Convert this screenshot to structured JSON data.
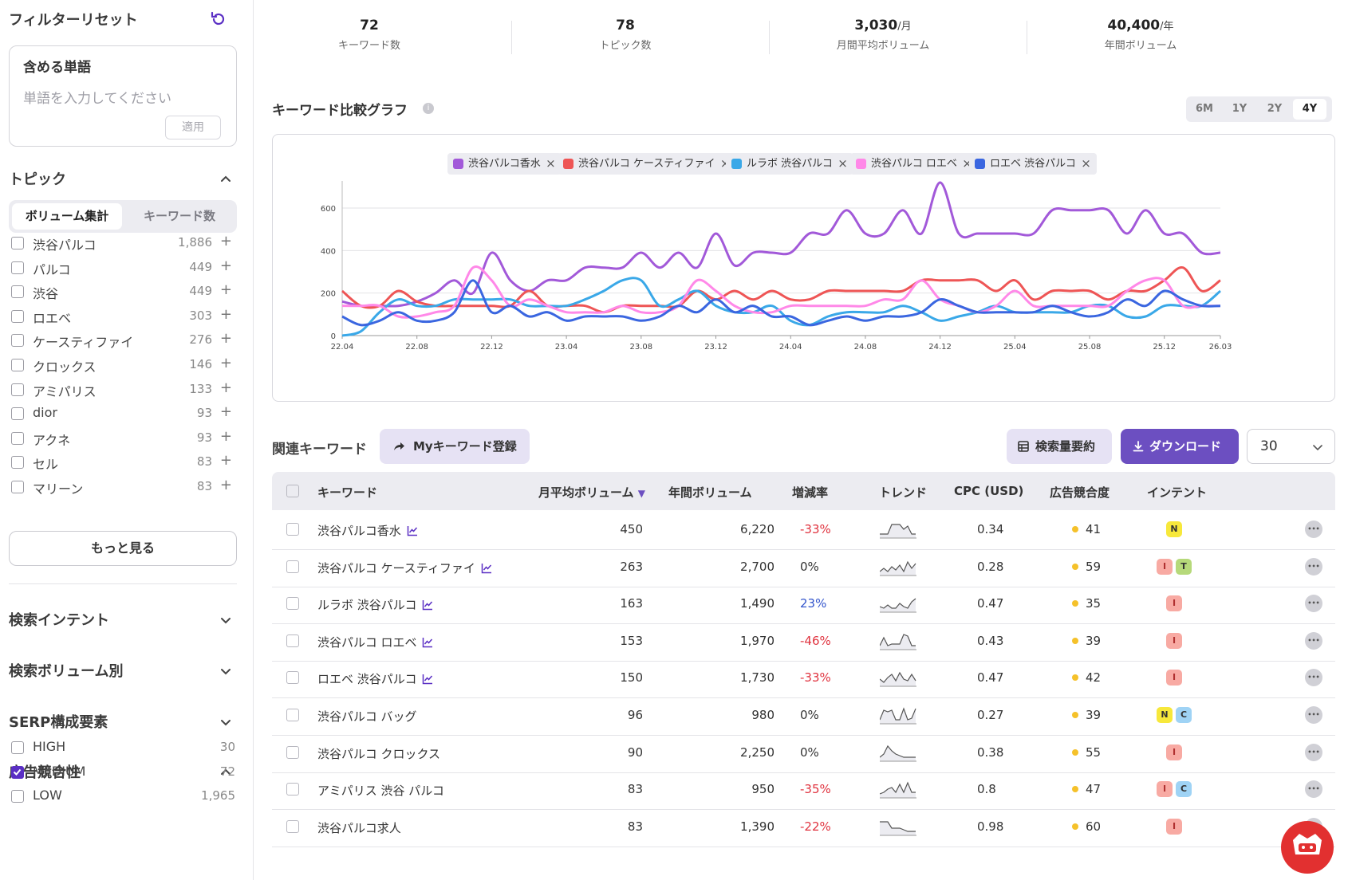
{
  "sidebar": {
    "filter_reset": "フィルターリセット",
    "include_title": "含める単語",
    "include_placeholder": "単語を入力してください",
    "apply": "適用",
    "topic_title": "トピック",
    "seg_volume": "ボリューム集計",
    "seg_keywords": "キーワード数",
    "topics": [
      {
        "label": "渋谷パルコ",
        "count": "1,886"
      },
      {
        "label": "パルコ",
        "count": "449"
      },
      {
        "label": "渋谷",
        "count": "449"
      },
      {
        "label": "ロエベ",
        "count": "303"
      },
      {
        "label": "ケースティファイ",
        "count": "276"
      },
      {
        "label": "クロックス",
        "count": "146"
      },
      {
        "label": "アミパリス",
        "count": "133"
      },
      {
        "label": "dior",
        "count": "93"
      },
      {
        "label": "アクネ",
        "count": "93"
      },
      {
        "label": "セル",
        "count": "83"
      },
      {
        "label": "マリーン",
        "count": "83"
      }
    ],
    "more": "もっと見る",
    "intent_title": "検索インテント",
    "volume_title": "検索ボリューム別",
    "serp_title": "SERP構成要素",
    "ad_title": "広告競合性",
    "ad_levels": [
      {
        "label": "HIGH",
        "count": "30",
        "checked": false
      },
      {
        "label": "MEDIUM",
        "count": "72",
        "checked": true
      },
      {
        "label": "LOW",
        "count": "1,965",
        "checked": false
      }
    ]
  },
  "stats": [
    {
      "value": "72",
      "unit": "",
      "label": "キーワード数"
    },
    {
      "value": "78",
      "unit": "",
      "label": "トピック数"
    },
    {
      "value": "3,030",
      "unit": "/月",
      "label": "月間平均ボリューム"
    },
    {
      "value": "40,400",
      "unit": "/年",
      "label": "年間ボリューム"
    }
  ],
  "chart_title": "キーワード比較グラフ",
  "periods": [
    "6M",
    "1Y",
    "2Y",
    "4Y"
  ],
  "active_period": "4Y",
  "chart_data": {
    "type": "line",
    "x": [
      "22.04",
      "22.05",
      "22.06",
      "22.07",
      "22.08",
      "22.09",
      "22.10",
      "22.11",
      "22.12",
      "23.01",
      "23.02",
      "23.03",
      "23.04",
      "23.05",
      "23.06",
      "23.07",
      "23.08",
      "23.09",
      "23.10",
      "23.11",
      "23.12",
      "24.01",
      "24.02",
      "24.03",
      "24.04",
      "24.05",
      "24.06",
      "24.07",
      "24.08",
      "24.09",
      "24.10",
      "24.11",
      "24.12",
      "25.01",
      "25.02",
      "25.03",
      "25.04",
      "25.05",
      "25.06",
      "25.07",
      "25.08",
      "25.09",
      "25.10",
      "25.11",
      "25.12",
      "26.01",
      "26.02",
      "26.03"
    ],
    "x_ticks": [
      "22.04",
      "22.08",
      "22.12",
      "23.04",
      "23.08",
      "23.12",
      "24.04",
      "24.08",
      "24.12",
      "25.04",
      "25.08",
      "25.12",
      "26.03"
    ],
    "y_ticks": [
      0,
      200,
      400,
      600
    ],
    "ylim": [
      0,
      720
    ],
    "grid": true,
    "legend_position": "top-center",
    "series": [
      {
        "name": "渋谷パルコ香水",
        "color": "#a259d9",
        "values": [
          160,
          140,
          140,
          140,
          160,
          200,
          260,
          200,
          390,
          260,
          210,
          260,
          260,
          320,
          320,
          320,
          390,
          320,
          390,
          320,
          480,
          330,
          390,
          390,
          390,
          480,
          480,
          590,
          480,
          480,
          590,
          480,
          720,
          480,
          480,
          480,
          480,
          480,
          590,
          590,
          590,
          590,
          480,
          590,
          480,
          480,
          390,
          390
        ]
      },
      {
        "name": "渋谷パルコ ケースティファイ",
        "color": "#ee5555",
        "values": [
          210,
          140,
          140,
          210,
          160,
          140,
          140,
          140,
          140,
          140,
          210,
          140,
          140,
          140,
          110,
          140,
          140,
          140,
          140,
          210,
          170,
          210,
          170,
          210,
          170,
          170,
          210,
          210,
          210,
          210,
          210,
          260,
          260,
          260,
          260,
          210,
          260,
          170,
          210,
          210,
          210,
          170,
          210,
          210,
          260,
          320,
          210,
          260
        ]
      },
      {
        "name": "ルラボ 渋谷パルコ",
        "color": "#3aa8e8",
        "values": [
          0,
          20,
          110,
          170,
          140,
          140,
          170,
          170,
          170,
          170,
          140,
          140,
          140,
          170,
          210,
          260,
          260,
          140,
          170,
          210,
          140,
          110,
          110,
          140,
          70,
          50,
          90,
          110,
          110,
          110,
          140,
          110,
          70,
          90,
          110,
          140,
          110,
          110,
          110,
          110,
          140,
          140,
          90,
          90,
          140,
          140,
          140,
          210
        ]
      },
      {
        "name": "渋谷パルコ ロエベ",
        "color": "#ff88e8",
        "values": [
          140,
          140,
          140,
          90,
          90,
          110,
          140,
          320,
          260,
          140,
          170,
          140,
          110,
          110,
          110,
          140,
          110,
          110,
          140,
          260,
          210,
          140,
          110,
          110,
          140,
          140,
          140,
          140,
          140,
          170,
          170,
          260,
          170,
          140,
          110,
          140,
          210,
          140,
          140,
          140,
          140,
          140,
          210,
          260,
          260,
          140,
          140,
          140
        ]
      },
      {
        "name": "ロエベ 渋谷パルコ",
        "color": "#3a66e0",
        "values": [
          90,
          50,
          70,
          110,
          70,
          70,
          110,
          260,
          110,
          140,
          90,
          110,
          70,
          90,
          90,
          90,
          70,
          90,
          140,
          110,
          170,
          110,
          140,
          90,
          90,
          50,
          70,
          90,
          70,
          90,
          90,
          110,
          170,
          140,
          110,
          110,
          110,
          110,
          140,
          110,
          90,
          110,
          170,
          140,
          210,
          170,
          140,
          140
        ]
      }
    ]
  },
  "related": {
    "title": "関連キーワード",
    "my_btn": "Myキーワード登録",
    "summary_btn": "検索量要約",
    "download_btn": "ダウンロード",
    "page_size": "30",
    "headers": {
      "keyword": "キーワード",
      "avg": "月平均ボリューム",
      "annual": "年間ボリューム",
      "rate": "増減率",
      "trend": "トレンド",
      "cpc": "CPC (USD)",
      "comp": "広告競合度",
      "intent": "インテント"
    },
    "rows": [
      {
        "kw": "渋谷パルコ香水",
        "icon": true,
        "avg": "450",
        "annual": "6,220",
        "rate": "-33%",
        "trend": [
          2,
          2,
          2,
          8,
          8,
          8,
          5,
          7,
          2,
          2
        ],
        "cpc": "0.34",
        "comp": "41",
        "intents": [
          "N"
        ]
      },
      {
        "kw": "渋谷パルコ ケースティファイ",
        "icon": true,
        "avg": "263",
        "annual": "2,700",
        "rate": "0%",
        "trend": [
          2,
          4,
          2,
          5,
          3,
          6,
          2,
          8,
          4,
          7
        ],
        "cpc": "0.28",
        "comp": "59",
        "intents": [
          "I",
          "T"
        ]
      },
      {
        "kw": "ルラボ 渋谷パルコ",
        "icon": true,
        "avg": "163",
        "annual": "1,490",
        "rate": "23%",
        "trend": [
          3,
          2,
          4,
          2,
          2,
          5,
          3,
          2,
          6,
          8
        ],
        "cpc": "0.47",
        "comp": "35",
        "intents": [
          "I"
        ]
      },
      {
        "kw": "渋谷パルコ ロエベ",
        "icon": true,
        "avg": "153",
        "annual": "1,970",
        "rate": "-46%",
        "trend": [
          2,
          7,
          2,
          3,
          3,
          3,
          9,
          8,
          2,
          2
        ],
        "cpc": "0.43",
        "comp": "39",
        "intents": [
          "I"
        ]
      },
      {
        "kw": "ロエベ 渋谷パルコ",
        "icon": true,
        "avg": "150",
        "annual": "1,730",
        "rate": "-33%",
        "trend": [
          4,
          2,
          5,
          7,
          3,
          8,
          4,
          3,
          7,
          3
        ],
        "cpc": "0.47",
        "comp": "42",
        "intents": [
          "I"
        ]
      },
      {
        "kw": "渋谷パルコ バッグ",
        "icon": false,
        "avg": "96",
        "annual": "980",
        "rate": "0%",
        "trend": [
          2,
          8,
          7,
          8,
          2,
          2,
          9,
          2,
          3,
          9
        ],
        "cpc": "0.27",
        "comp": "39",
        "intents": [
          "N",
          "C"
        ]
      },
      {
        "kw": "渋谷パルコ クロックス",
        "icon": false,
        "avg": "90",
        "annual": "2,250",
        "rate": "0%",
        "trend": [
          2,
          4,
          9,
          6,
          4,
          3,
          2,
          2,
          2,
          2
        ],
        "cpc": "0.38",
        "comp": "55",
        "intents": [
          "I"
        ]
      },
      {
        "kw": "アミパリス 渋谷 パルコ",
        "icon": false,
        "avg": "83",
        "annual": "950",
        "rate": "-35%",
        "trend": [
          2,
          3,
          5,
          6,
          3,
          8,
          3,
          9,
          3,
          3
        ],
        "cpc": "0.8",
        "comp": "47",
        "intents": [
          "I",
          "C"
        ]
      },
      {
        "kw": "渋谷パルコ求人",
        "icon": false,
        "avg": "83",
        "annual": "1,390",
        "rate": "-22%",
        "trend": [
          8,
          8,
          8,
          4,
          4,
          4,
          3,
          2,
          2,
          2
        ],
        "cpc": "0.98",
        "comp": "60",
        "intents": [
          "I"
        ]
      }
    ]
  },
  "colors": {
    "accent": "#6c4fc1",
    "accent_light": "#e6e2f4",
    "negative": "#e0333f",
    "positive": "#3355cc"
  }
}
